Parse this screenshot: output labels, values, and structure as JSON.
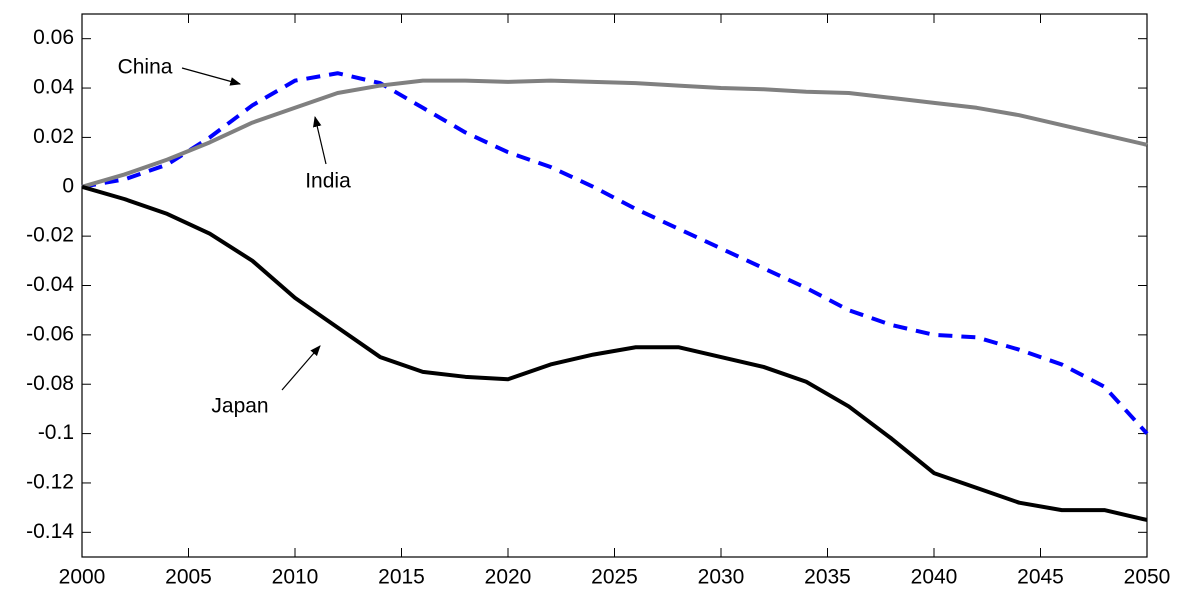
{
  "chart_data": {
    "type": "line",
    "x": [
      2000,
      2002,
      2004,
      2006,
      2008,
      2010,
      2012,
      2014,
      2016,
      2018,
      2020,
      2022,
      2024,
      2026,
      2028,
      2030,
      2032,
      2034,
      2036,
      2038,
      2040,
      2042,
      2044,
      2046,
      2048,
      2050
    ],
    "series": [
      {
        "name": "China",
        "color": "#0000ff",
        "dashed": true,
        "values": [
          0,
          0.003,
          0.009,
          0.02,
          0.033,
          0.043,
          0.046,
          0.042,
          0.032,
          0.022,
          0.014,
          0.008,
          0.0,
          -0.009,
          -0.017,
          -0.025,
          -0.033,
          -0.041,
          -0.05,
          -0.056,
          -0.06,
          -0.061,
          -0.066,
          -0.072,
          -0.081,
          -0.1
        ]
      },
      {
        "name": "India",
        "color": "#808080",
        "dashed": false,
        "values": [
          0,
          0.005,
          0.011,
          0.018,
          0.026,
          0.032,
          0.038,
          0.041,
          0.043,
          0.043,
          0.0425,
          0.043,
          0.0425,
          0.042,
          0.041,
          0.04,
          0.0395,
          0.0385,
          0.038,
          0.036,
          0.034,
          0.032,
          0.029,
          0.025,
          0.021,
          0.017
        ]
      },
      {
        "name": "Japan",
        "color": "#000000",
        "dashed": false,
        "values": [
          0,
          -0.005,
          -0.011,
          -0.019,
          -0.03,
          -0.045,
          -0.057,
          -0.069,
          -0.075,
          -0.077,
          -0.078,
          -0.072,
          -0.068,
          -0.065,
          -0.065,
          -0.069,
          -0.073,
          -0.079,
          -0.089,
          -0.102,
          -0.116,
          -0.122,
          -0.128,
          -0.131,
          -0.131,
          -0.135
        ]
      }
    ],
    "xlim": [
      2000,
      2050
    ],
    "xticks": [
      2000,
      2005,
      2010,
      2015,
      2020,
      2025,
      2030,
      2035,
      2040,
      2045,
      2050
    ],
    "ylim": [
      -0.15,
      0.07
    ],
    "yticks": [
      -0.14,
      -0.12,
      -0.1,
      -0.08,
      -0.06,
      -0.04,
      -0.02,
      0,
      0.02,
      0.04,
      0.06
    ],
    "grid": false
  }
}
